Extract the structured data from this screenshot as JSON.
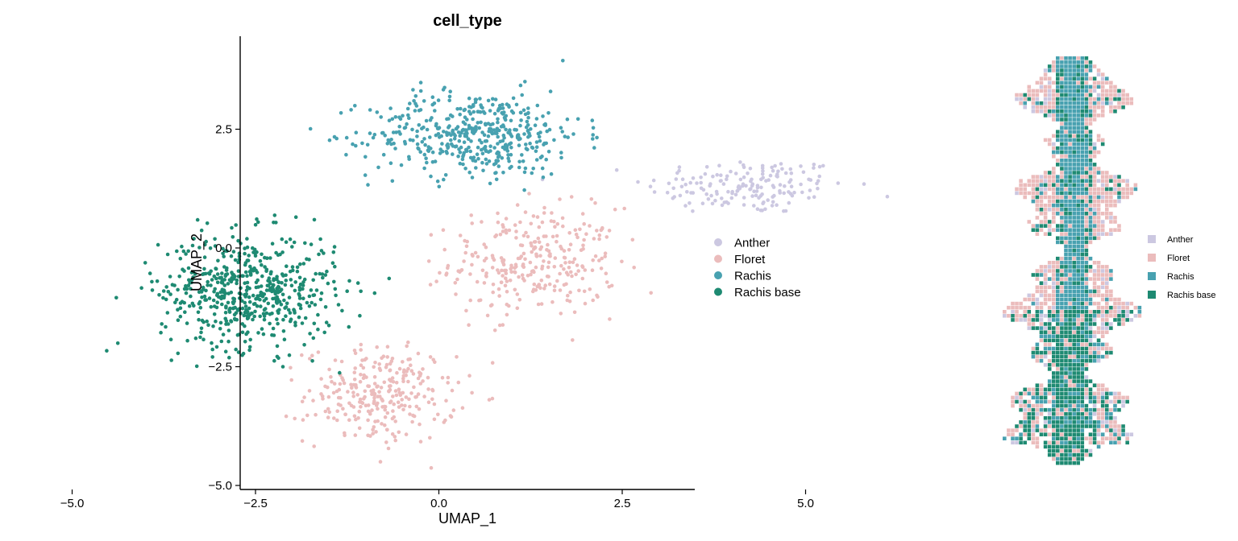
{
  "chart_data": [
    {
      "type": "scatter",
      "title": "cell_type",
      "xlabel": "UMAP_1",
      "ylabel": "UMAP_2",
      "xlim": [
        -5.6,
        7.0
      ],
      "ylim": [
        -5.1,
        4.5
      ],
      "x_ticks": [
        -5.0,
        -2.5,
        0.0,
        2.5,
        5.0
      ],
      "x_tick_labels": [
        "−5.0",
        "−2.5",
        "0.0",
        "2.5",
        "5.0"
      ],
      "y_ticks": [
        -5.0,
        -2.5,
        0.0,
        2.5
      ],
      "y_tick_labels": [
        "−5.0",
        "−2.5",
        "0.0",
        "2.5"
      ],
      "grid": false,
      "legend_position": "right",
      "series": [
        {
          "name": "Anther",
          "color": "#ccc8e1",
          "clusters": [
            {
              "center": [
                4.2,
                1.3
              ],
              "spread": [
                1.15,
                0.5
              ],
              "count": 170
            }
          ]
        },
        {
          "name": "Floret",
          "color": "#ebbcbc",
          "clusters": [
            {
              "center": [
                1.3,
                -0.3
              ],
              "spread": [
                0.95,
                0.95
              ],
              "count": 300
            },
            {
              "center": [
                -0.8,
                -3.1
              ],
              "spread": [
                0.85,
                0.85
              ],
              "count": 280
            }
          ]
        },
        {
          "name": "Rachis",
          "color": "#48a1b0",
          "clusters": [
            {
              "center": [
                0.5,
                2.4
              ],
              "spread": [
                1.2,
                0.75
              ],
              "count": 460
            }
          ]
        },
        {
          "name": "Rachis base",
          "color": "#1e8a72",
          "clusters": [
            {
              "center": [
                -2.6,
                -0.9
              ],
              "spread": [
                1.0,
                1.0
              ],
              "count": 560
            }
          ]
        }
      ]
    },
    {
      "type": "heatmap",
      "title": "",
      "xlabel": "",
      "ylabel": "",
      "legend_position": "right",
      "grid_size": [
        36,
        100
      ],
      "legend": [
        {
          "name": "Anther",
          "color": "#ccc8e1"
        },
        {
          "name": "Floret",
          "color": "#ebbcbc"
        },
        {
          "name": "Rachis",
          "color": "#48a1b0"
        },
        {
          "name": "Rachis base",
          "color": "#1e8a72"
        }
      ]
    }
  ]
}
